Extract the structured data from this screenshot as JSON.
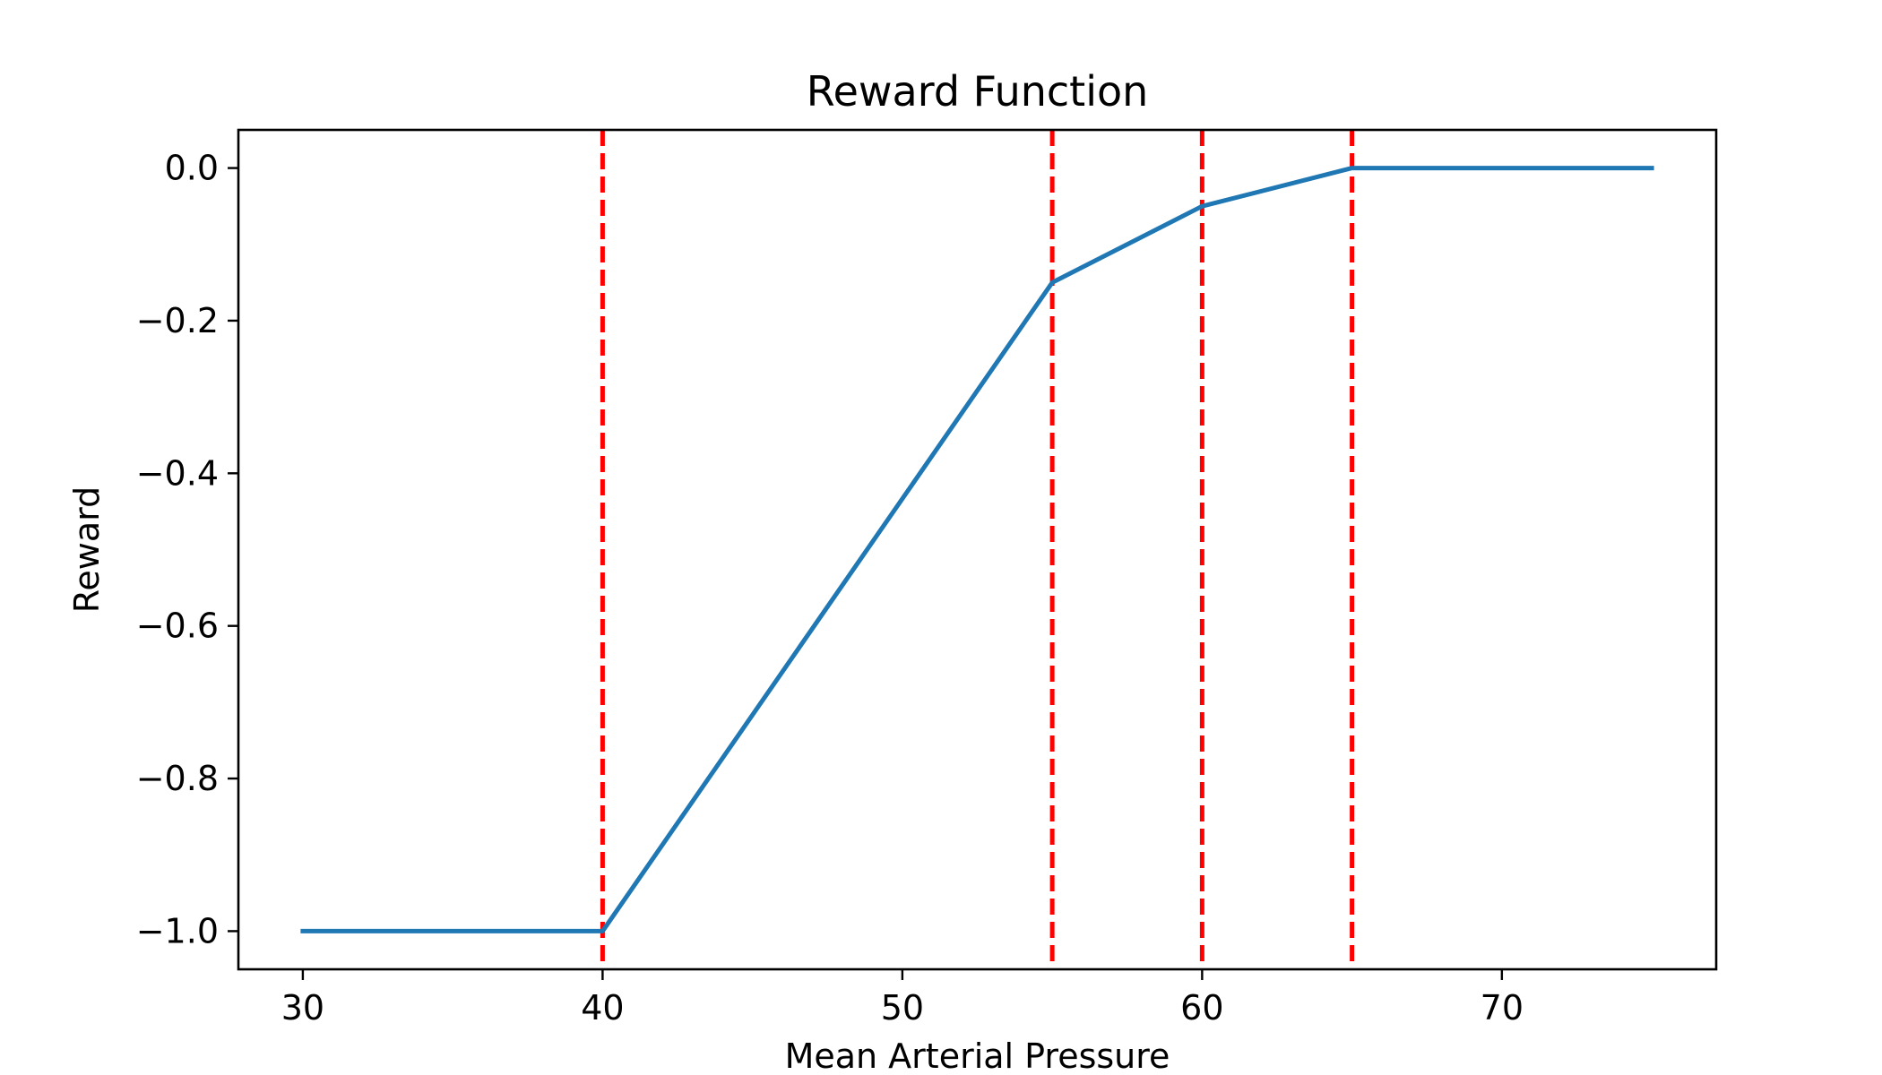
{
  "chart_data": {
    "type": "line",
    "title": "Reward Function",
    "xlabel": "Mean Arterial Pressure",
    "ylabel": "Reward",
    "xlim": [
      27.85,
      77.15
    ],
    "ylim": [
      -1.05,
      0.05
    ],
    "grid": false,
    "x_ticks": [
      30,
      40,
      50,
      60,
      70
    ],
    "x_tick_labels": [
      "30",
      "40",
      "50",
      "60",
      "70"
    ],
    "y_ticks": [
      0.0,
      -0.2,
      -0.4,
      -0.6,
      -0.8,
      -1.0
    ],
    "y_tick_labels": [
      "0.0",
      "−0.2",
      "−0.4",
      "−0.6",
      "−0.8",
      "−1.0"
    ],
    "series": [
      {
        "color": "#1f77b4",
        "x": [
          30,
          40,
          55,
          60,
          65,
          75
        ],
        "y": [
          -1.0,
          -1.0,
          -0.15,
          -0.05,
          0.0,
          0.0
        ]
      }
    ],
    "vlines": {
      "x": [
        40,
        55,
        60,
        65
      ],
      "color": "#ff0000",
      "style": "dashed"
    }
  }
}
